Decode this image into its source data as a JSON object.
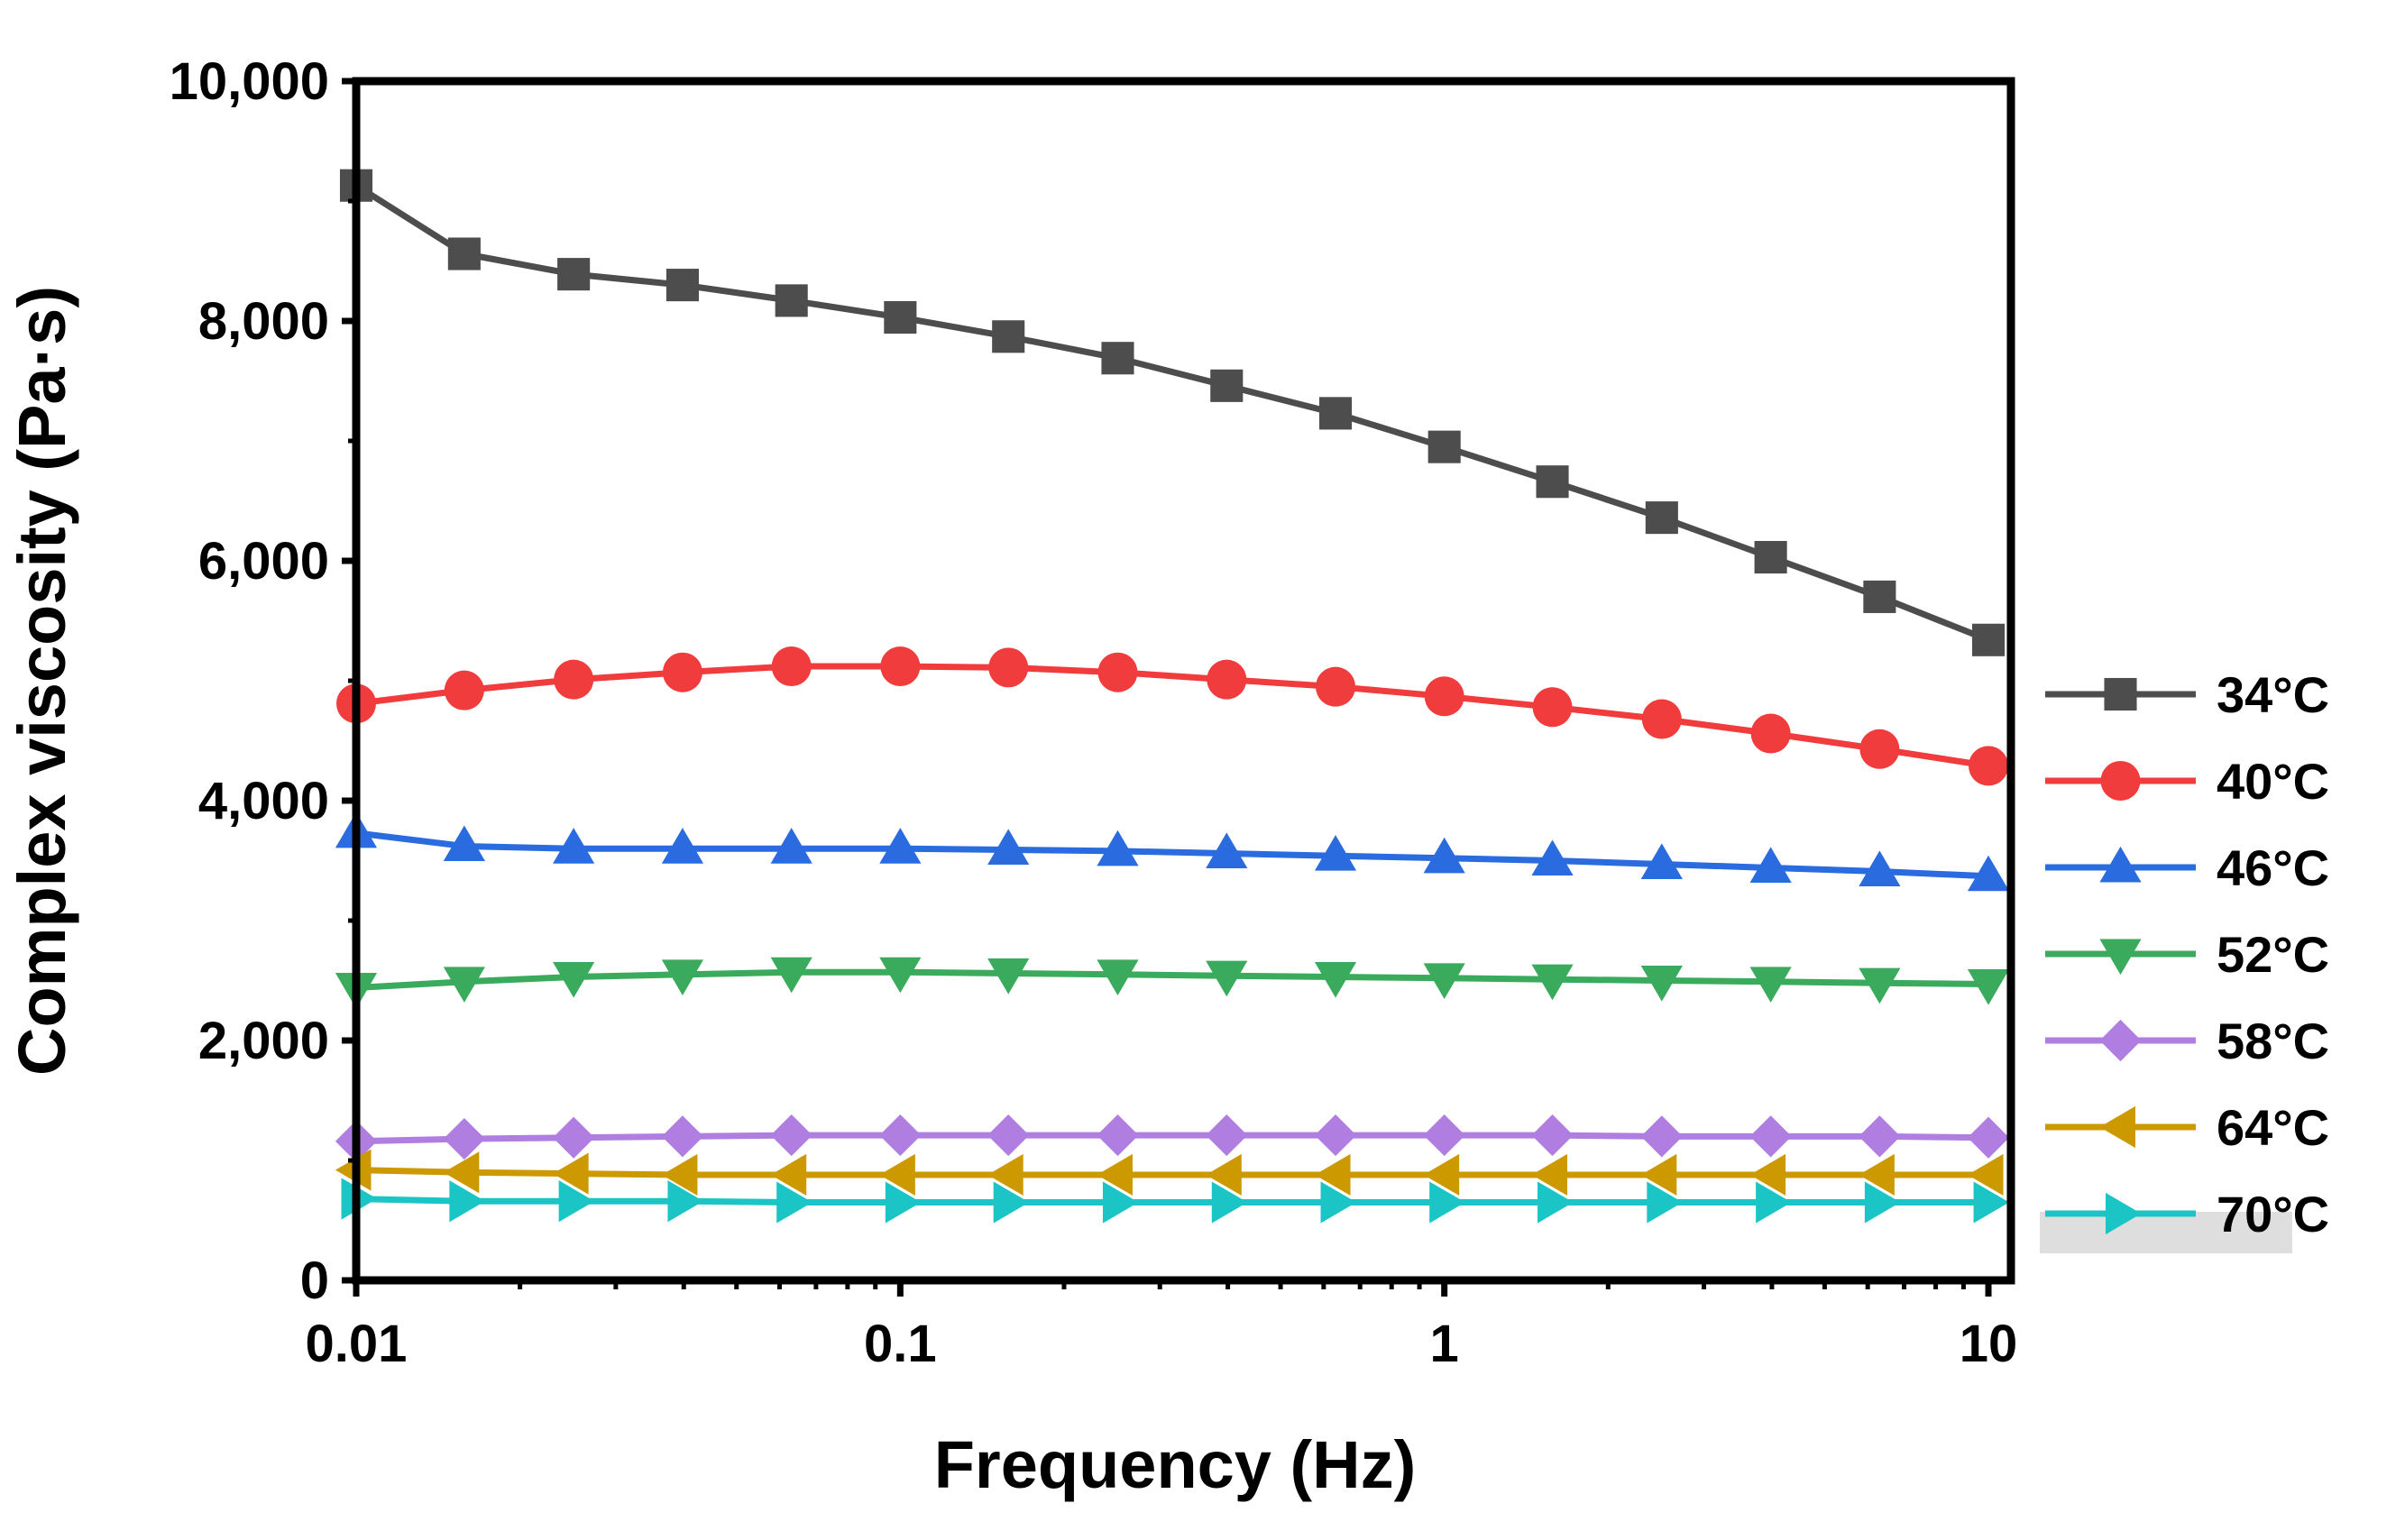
{
  "chart_data": {
    "type": "line",
    "title": "",
    "xlabel": "Frequency (Hz)",
    "ylabel": "Complex viscosity (Pa·s)",
    "xscale": "log",
    "xlim": [
      0.01,
      11
    ],
    "ylim": [
      0,
      10000
    ],
    "x_ticks": [
      0.01,
      0.1,
      1,
      10
    ],
    "x_tick_labels": [
      "0.01",
      "0.1",
      "1",
      "10"
    ],
    "y_ticks": [
      0,
      2000,
      4000,
      6000,
      8000,
      10000
    ],
    "y_tick_labels": [
      "0",
      "2,000",
      "4,000",
      "6,000",
      "8,000",
      "10,000"
    ],
    "grid": false,
    "legend_position": "right-bottom",
    "x": [
      0.01,
      0.0158,
      0.0251,
      0.0398,
      0.0631,
      0.1,
      0.158,
      0.251,
      0.398,
      0.631,
      1,
      1.58,
      2.51,
      3.98,
      6.31,
      10
    ],
    "series": [
      {
        "name": "34°C",
        "color": "#4d4d4d",
        "marker": "square",
        "values": [
          9130,
          8560,
          8390,
          8300,
          8170,
          8030,
          7870,
          7690,
          7460,
          7230,
          6950,
          6660,
          6360,
          6030,
          5700,
          5340
        ]
      },
      {
        "name": "40°C",
        "color": "#f03c3c",
        "marker": "circle",
        "values": [
          4810,
          4920,
          5010,
          5070,
          5120,
          5120,
          5110,
          5070,
          5010,
          4950,
          4870,
          4780,
          4680,
          4560,
          4430,
          4290
        ]
      },
      {
        "name": "46°C",
        "color": "#2a6cdf",
        "marker": "triangle-up",
        "values": [
          3730,
          3620,
          3600,
          3600,
          3600,
          3600,
          3590,
          3580,
          3560,
          3540,
          3520,
          3500,
          3470,
          3440,
          3410,
          3370
        ]
      },
      {
        "name": "52°C",
        "color": "#3aaa5c",
        "marker": "triangle-down",
        "values": [
          2440,
          2490,
          2530,
          2550,
          2570,
          2570,
          2560,
          2550,
          2540,
          2530,
          2520,
          2510,
          2500,
          2490,
          2480,
          2470
        ]
      },
      {
        "name": "58°C",
        "color": "#b07de0",
        "marker": "diamond",
        "values": [
          1160,
          1180,
          1190,
          1200,
          1210,
          1210,
          1210,
          1210,
          1210,
          1210,
          1210,
          1210,
          1200,
          1200,
          1200,
          1190
        ]
      },
      {
        "name": "64°C",
        "color": "#cc9900",
        "marker": "triangle-left",
        "values": [
          920,
          900,
          890,
          880,
          880,
          880,
          880,
          880,
          880,
          880,
          880,
          880,
          880,
          880,
          880,
          880
        ]
      },
      {
        "name": "70°C",
        "color": "#1cc5c5",
        "marker": "triangle-right",
        "values": [
          680,
          660,
          660,
          660,
          650,
          650,
          650,
          650,
          650,
          650,
          650,
          650,
          650,
          650,
          650,
          650
        ]
      }
    ]
  }
}
